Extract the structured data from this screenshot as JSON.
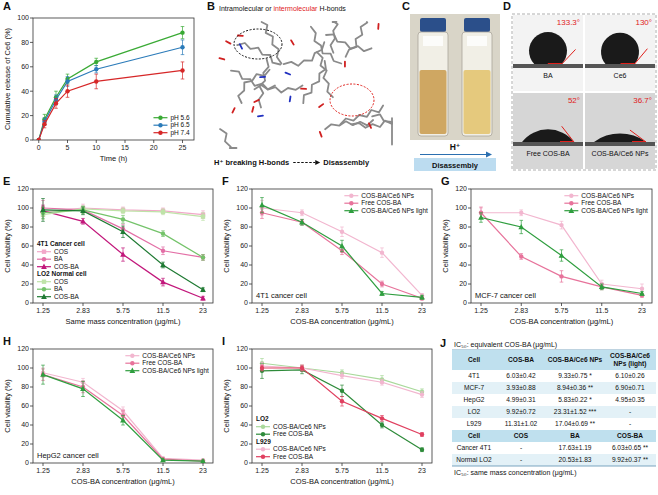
{
  "chart_data": [
    {
      "panel_label": "A",
      "type": "line",
      "x_label": "Time (h)",
      "y_label": "Cumulative release of Ce6 (%)",
      "x": [
        0,
        1,
        3,
        5,
        10,
        25
      ],
      "xlim": [
        -1,
        27
      ],
      "xticks": [
        0,
        5,
        10,
        15,
        20,
        25
      ],
      "ylim": [
        0,
        100
      ],
      "yticks": [
        0,
        20,
        40,
        60,
        80,
        100
      ],
      "legend": "lower right",
      "series": [
        {
          "name": "pH 5.6",
          "color": "#3aaa35",
          "marker": "circle",
          "values": [
            0,
            17,
            35,
            50,
            64,
            88
          ],
          "errors": [
            0,
            4,
            5,
            4,
            3,
            5
          ]
        },
        {
          "name": "pH 6.5",
          "color": "#2b7bb9",
          "marker": "circle",
          "values": [
            0,
            15,
            33,
            48,
            58,
            76
          ],
          "errors": [
            0,
            3,
            4,
            4,
            3,
            6
          ]
        },
        {
          "name": "pH 7.4",
          "color": "#d62728",
          "marker": "circle",
          "values": [
            0,
            13,
            30,
            40,
            48,
            57
          ],
          "errors": [
            0,
            3,
            4,
            5,
            6,
            7
          ]
        }
      ]
    },
    {
      "panel_label": "E",
      "type": "line",
      "x_label": "Same mass concentration (μg/mL)",
      "y_label": "Cell viability (%)",
      "categories": [
        "1.25",
        "2.83",
        "5.75",
        "11.5",
        "23"
      ],
      "ylim": [
        0,
        120
      ],
      "yticks": [
        0,
        20,
        40,
        60,
        80,
        100,
        120
      ],
      "legend": "lower left",
      "series": [
        {
          "name": "COS",
          "group": "4T1 Cancer cell",
          "color": "#f2a7c9",
          "marker": "square",
          "values": [
            96,
            100,
            98,
            97,
            93
          ],
          "errors": [
            5,
            4,
            3,
            3,
            4
          ]
        },
        {
          "name": "BA",
          "group": "4T1 Cancer cell",
          "color": "#e36fa6",
          "marker": "circle",
          "values": [
            100,
            98,
            78,
            55,
            48
          ],
          "errors": [
            8,
            3,
            5,
            4,
            3
          ]
        },
        {
          "name": "COS-BA",
          "group": "4T1 Cancer cell",
          "color": "#c2177b",
          "marker": "triangle",
          "values": [
            97,
            86,
            51,
            22,
            5
          ],
          "errors": [
            6,
            3,
            7,
            4,
            2
          ]
        },
        {
          "name": "COS",
          "group": "LO2 Normal cell",
          "color": "#bfe3a8",
          "marker": "square",
          "values": [
            93,
            99,
            97,
            96,
            91
          ],
          "errors": [
            5,
            3,
            3,
            3,
            4
          ]
        },
        {
          "name": "BA",
          "group": "LO2 Normal cell",
          "color": "#74c36a",
          "marker": "circle",
          "values": [
            95,
            98,
            88,
            73,
            48
          ],
          "errors": [
            6,
            4,
            4,
            3,
            3
          ]
        },
        {
          "name": "COS-BA",
          "group": "LO2 Normal cell",
          "color": "#1f7a33",
          "marker": "triangle",
          "values": [
            98,
            97,
            75,
            40,
            14
          ],
          "errors": [
            12,
            4,
            6,
            3,
            2
          ]
        }
      ]
    },
    {
      "panel_label": "F",
      "type": "line",
      "title": "4T1 cancer cell",
      "x_label": "COS-BA concentration (μg/mL)",
      "y_label": "Cell viability (%)",
      "categories": [
        "1.25",
        "2.83",
        "5.75",
        "11.5",
        "23"
      ],
      "ylim": [
        0,
        120
      ],
      "yticks": [
        0,
        20,
        40,
        60,
        80,
        100,
        120
      ],
      "legend": "upper right",
      "series": [
        {
          "name": "COS-BA/Ce6 NPs",
          "color": "#f2b6cf",
          "marker": "circle",
          "values": [
            100,
            95,
            75,
            53,
            8
          ],
          "errors": [
            8,
            3,
            5,
            5,
            2
          ]
        },
        {
          "name": "Free COS-BA",
          "color": "#e7739b",
          "marker": "circle",
          "values": [
            95,
            85,
            55,
            20,
            5
          ],
          "errors": [
            6,
            3,
            4,
            3,
            2
          ]
        },
        {
          "name": "COS-BA/Ce6 NPs light",
          "color": "#2f9e3f",
          "marker": "triangle",
          "values": [
            103,
            85,
            60,
            10,
            6
          ],
          "errors": [
            8,
            3,
            6,
            2,
            2
          ]
        }
      ]
    },
    {
      "panel_label": "G",
      "type": "line",
      "title": "MCF-7 cancer cell",
      "x_label": "COS-BA concentration (μg/mL)",
      "y_label": "Cell viability (%)",
      "categories": [
        "1.25",
        "2.83",
        "5.75",
        "11.5",
        "23"
      ],
      "ylim": [
        0,
        120
      ],
      "yticks": [
        0,
        20,
        40,
        60,
        80,
        100,
        120
      ],
      "legend": "upper right",
      "series": [
        {
          "name": "COS-BA/Ce6 NPs",
          "color": "#f2b6cf",
          "marker": "circle",
          "values": [
            95,
            95,
            82,
            20,
            15
          ],
          "errors": [
            5,
            3,
            4,
            4,
            5
          ]
        },
        {
          "name": "Free COS-BA",
          "color": "#e7739b",
          "marker": "circle",
          "values": [
            95,
            49,
            28,
            17,
            8
          ],
          "errors": [
            6,
            3,
            6,
            3,
            2
          ]
        },
        {
          "name": "COS-BA/Ce6 NPs light",
          "color": "#2f9e3f",
          "marker": "triangle",
          "values": [
            90,
            80,
            50,
            17,
            10
          ],
          "errors": [
            5,
            7,
            6,
            3,
            2
          ]
        }
      ]
    },
    {
      "panel_label": "H",
      "type": "line",
      "title": "HepG2 cancer cell",
      "x_label": "COS-BA concentration (μg/mL)",
      "y_label": "Cell viability (%)",
      "categories": [
        "1.25",
        "2.83",
        "5.75",
        "11.5",
        "23"
      ],
      "ylim": [
        0,
        120
      ],
      "yticks": [
        0,
        20,
        40,
        60,
        80,
        100,
        120
      ],
      "legend": "upper right",
      "series": [
        {
          "name": "COS-BA/Ce6 NPs",
          "color": "#f2b6cf",
          "marker": "circle",
          "values": [
            95,
            85,
            55,
            5,
            3
          ],
          "errors": [
            5,
            4,
            4,
            1,
            1
          ]
        },
        {
          "name": "Free COS-BA",
          "color": "#e7739b",
          "marker": "circle",
          "values": [
            93,
            80,
            50,
            4,
            2
          ],
          "errors": [
            6,
            6,
            5,
            1,
            1
          ]
        },
        {
          "name": "COS-BA/Ce6 NPs light",
          "color": "#2f9e3f",
          "marker": "triangle",
          "values": [
            93,
            78,
            45,
            3,
            2
          ],
          "errors": [
            10,
            8,
            5,
            1,
            1
          ]
        }
      ]
    },
    {
      "panel_label": "I",
      "type": "line",
      "x_label": "COS-BA concentration (μg/mL)",
      "y_label": "Cell viability (%)",
      "categories": [
        "1.25",
        "2.83",
        "5.75",
        "11.5",
        "23"
      ],
      "ylim": [
        0,
        120
      ],
      "yticks": [
        0,
        20,
        40,
        60,
        80,
        100,
        120
      ],
      "legend": "lower left",
      "series": [
        {
          "name": "COS-BA/Ce6 NPs",
          "group": "LO2",
          "color": "#a9d99b",
          "marker": "circle",
          "values": [
            105,
            100,
            95,
            88,
            75
          ],
          "errors": [
            5,
            3,
            3,
            4,
            3
          ]
        },
        {
          "name": "Free COS-BA",
          "group": "LO2",
          "color": "#2e8b3a",
          "marker": "circle",
          "values": [
            97,
            98,
            76,
            40,
            14
          ],
          "errors": [
            8,
            4,
            6,
            3,
            2
          ]
        },
        {
          "name": "COS-BA/Ce6 NPs",
          "group": "L929",
          "color": "#f2b6cf",
          "marker": "circle",
          "values": [
            102,
            100,
            92,
            85,
            72
          ],
          "errors": [
            4,
            3,
            3,
            3,
            3
          ]
        },
        {
          "name": "Free COS-BA",
          "group": "L929",
          "color": "#e04060",
          "marker": "circle",
          "values": [
            100,
            100,
            65,
            47,
            30
          ],
          "errors": [
            3,
            3,
            5,
            3,
            2
          ]
        }
      ]
    }
  ],
  "panel_b": {
    "panel_label": "B",
    "title_parts": [
      "Intramolecular or ",
      "intermolecular",
      " H-bonds"
    ],
    "caption": "H⁺ breaking H-bonds",
    "caption_end": "Disassembly"
  },
  "panel_c": {
    "panel_label": "C",
    "arrow_label": "H⁺",
    "caption": "Disassembly"
  },
  "panel_d": {
    "panel_label": "D",
    "samples": [
      {
        "name": "BA",
        "angle": 133.3,
        "angle_label": "133.3°"
      },
      {
        "name": "Ce6",
        "angle": 130,
        "angle_label": "130°"
      },
      {
        "name": "Free COS-BA",
        "angle": 52,
        "angle_label": "52°"
      },
      {
        "name": "COS-BA/Ce6 NPs",
        "angle": 36.7,
        "angle_label": "36.7°"
      }
    ]
  },
  "panel_j": {
    "panel_label": "J",
    "title": "IC₅₀: equivalent COS-BA (μg/mL)",
    "header": [
      "Cell",
      "COS-BA",
      "COS-BA/Ce6 NPs",
      "COS-BA/Ce6 NPs (light)"
    ],
    "rows": [
      [
        "4T1",
        "6.03±0.42",
        "9.33±0.75 *",
        "6.10±0.26"
      ],
      [
        "MCF-7",
        "3.93±0.88",
        "8.94±0.36 **",
        "6.90±0.71"
      ],
      [
        "HepG2",
        "4.99±0.31",
        "5.83±0.22 *",
        "4.95±0.35"
      ],
      [
        "LO2",
        "9.92±0.72",
        "23.31±1.52 ***",
        "-"
      ],
      [
        "L929",
        "11.31±1.02",
        "17.04±0.69 **",
        "-"
      ]
    ],
    "header2": [
      "Cell",
      "COS",
      "BA",
      "COS-BA"
    ],
    "rows2": [
      [
        "Cancer 4T1",
        "-",
        "17.63±1.19",
        "6.03±0.65 **"
      ],
      [
        "Normal LO2",
        "-",
        "20.53±1.83",
        "9.92±0.37 **"
      ]
    ],
    "footer": "IC₅₀: same mass concentration (μg/mL)"
  }
}
